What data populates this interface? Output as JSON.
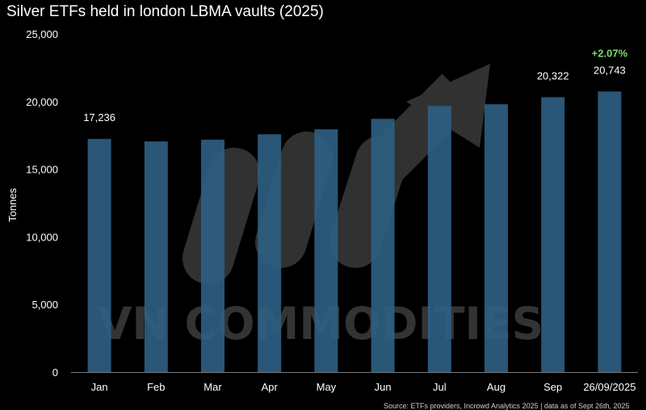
{
  "chart_data": {
    "type": "bar",
    "title": "Silver ETFs held in london LBMA vaults (2025)",
    "ylabel": "Tonnes",
    "xlabel": "",
    "ylim": [
      0,
      25000
    ],
    "yticks": [
      "0",
      "5,000",
      "10,000",
      "15,000",
      "20,000",
      "25,000"
    ],
    "categories": [
      "Jan",
      "Feb",
      "Mar",
      "Apr",
      "May",
      "Jun",
      "Jul",
      "Aug",
      "Sep",
      "26/09/2025"
    ],
    "values": [
      17236,
      17050,
      17180,
      17580,
      17950,
      18720,
      19680,
      19800,
      20322,
      20743
    ],
    "data_labels": [
      {
        "category": "Jan",
        "text": "17,236"
      },
      {
        "category": "Sep",
        "text": "20,322"
      },
      {
        "category": "26/09/2025",
        "text": "20,743"
      }
    ],
    "growth_label": {
      "category": "26/09/2025",
      "text": "+2.07%",
      "color": "#7fd86f"
    },
    "bar_color": "#2f5f84",
    "grid": false,
    "legend": "none"
  },
  "watermark": {
    "text": "VN COMMODITIES"
  },
  "source_note": "Source: ETFs providers, Incrowd Analytics 2025 | data as of Sept 26th, 2025"
}
